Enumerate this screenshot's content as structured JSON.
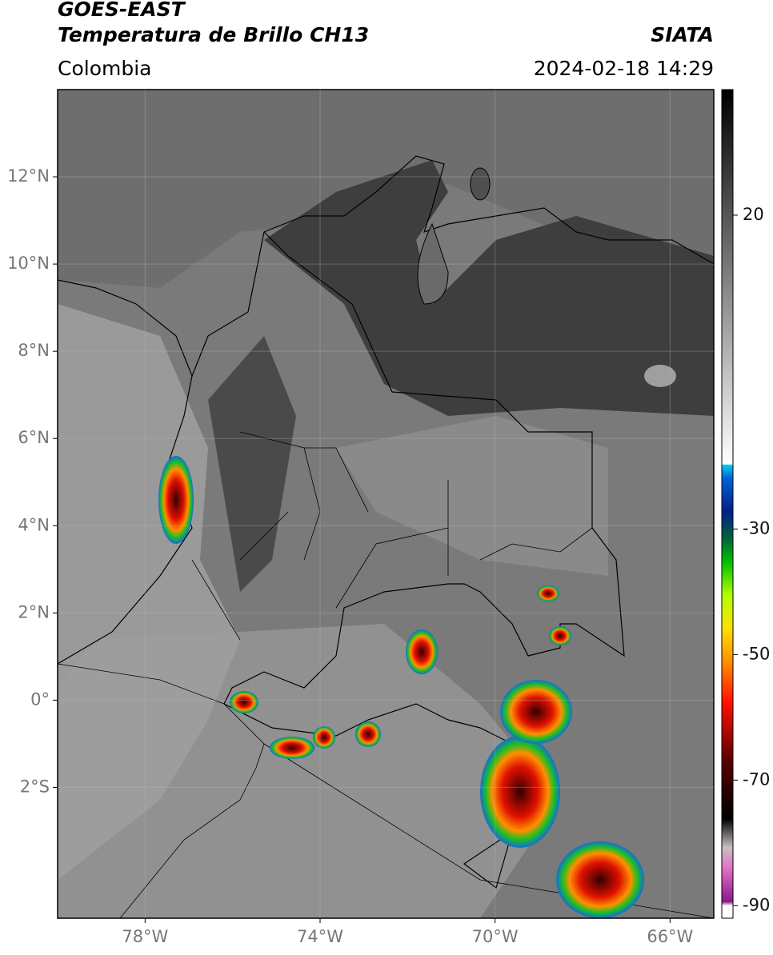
{
  "chart_data": {
    "type": "map",
    "title": "GOES-EAST",
    "subtitle": "Temperatura de Brillo CH13",
    "region": "Colombia",
    "source": "SIATA",
    "datetime": "2024-02-18 14:29",
    "xlim": [
      -80,
      -65
    ],
    "ylim": [
      -5,
      14
    ],
    "xticks": [
      {
        "value": -78,
        "label": "78°W"
      },
      {
        "value": -74,
        "label": "74°W"
      },
      {
        "value": -70,
        "label": "70°W"
      },
      {
        "value": -66,
        "label": "66°W"
      }
    ],
    "yticks": [
      {
        "value": 12,
        "label": "12°N"
      },
      {
        "value": 10,
        "label": "10°N"
      },
      {
        "value": 8,
        "label": "8°N"
      },
      {
        "value": 6,
        "label": "6°N"
      },
      {
        "value": 4,
        "label": "4°N"
      },
      {
        "value": 2,
        "label": "2°N"
      },
      {
        "value": 0,
        "label": "0°"
      },
      {
        "value": -2,
        "label": "2°S"
      }
    ],
    "clim": [
      -92,
      40
    ],
    "cticks": [
      20,
      -30,
      -50,
      -70,
      -90
    ],
    "grid": true
  }
}
